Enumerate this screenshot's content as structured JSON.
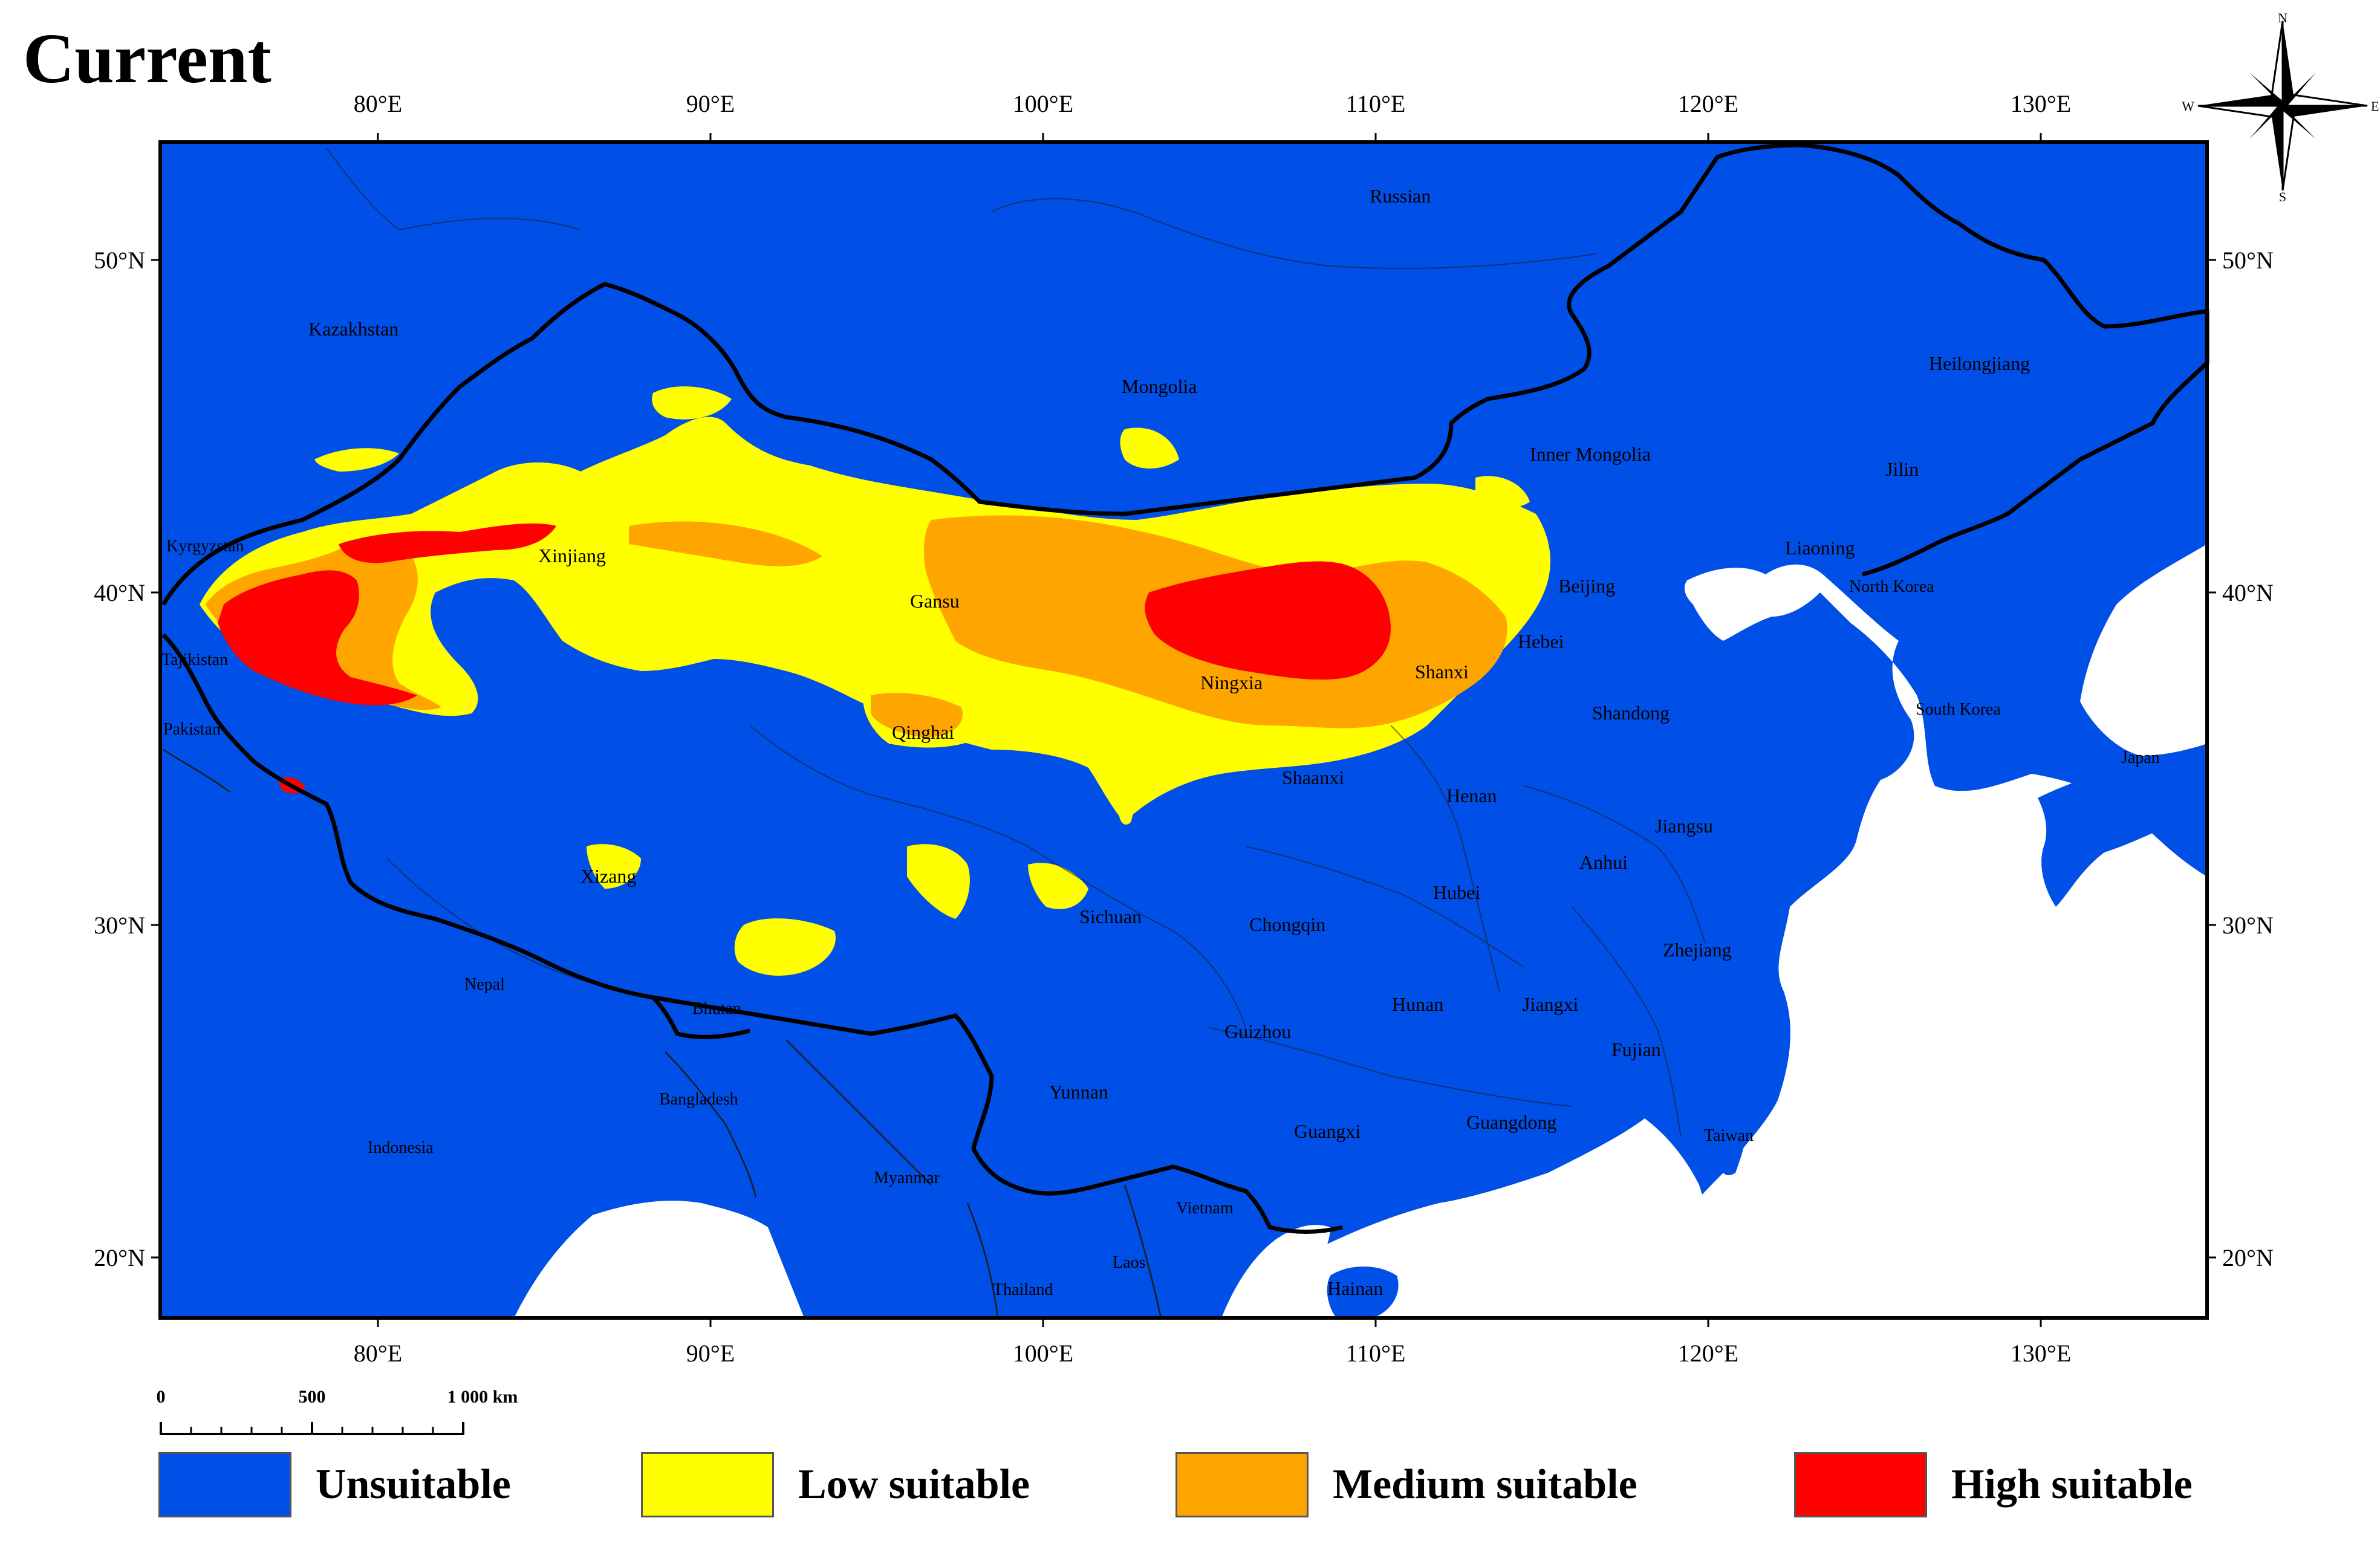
{
  "title": "Current",
  "longitude_ticks": [
    "80°E",
    "90°E",
    "100°E",
    "110°E",
    "120°E",
    "130°E"
  ],
  "latitude_ticks": [
    "50°N",
    "40°N",
    "30°N",
    "20°N"
  ],
  "compass": {
    "n": "N",
    "s": "S",
    "e": "E",
    "w": "W"
  },
  "scale_bar": {
    "tick0": "0",
    "tick1": "500",
    "tick2": "1 000 km"
  },
  "places": {
    "russian": "Russian",
    "kazakhstan": "Kazakhstan",
    "mongolia": "Mongolia",
    "heilongjiang": "Heilongjiang",
    "inner_mongolia": "Inner Mongolia",
    "jilin": "Jilin",
    "kyrgyzstan": "Kyrgyzstan",
    "xinjiang": "Xinjiang",
    "liaoning": "Liaoning",
    "beijing": "Beijing",
    "north_korea": "North Korea",
    "gansu": "Gansu",
    "tajikistan": "Tajikistan",
    "hebei": "Hebei",
    "shanxi": "Shanxi",
    "ningxia": "Ningxia",
    "south_korea": "South Korea",
    "pakistan": "Pakistan",
    "qinghai": "Qinghai",
    "shandong": "Shandong",
    "japan": "Japan",
    "shaanxi": "Shaanxi",
    "henan": "Henan",
    "jiangsu": "Jiangsu",
    "xizang": "Xizang",
    "anhui": "Anhui",
    "hubei": "Hubei",
    "sichuan": "Sichuan",
    "chongqin": "Chongqin",
    "zhejiang": "Zhejiang",
    "nepal": "Nepal",
    "bhutan": "Bhutan",
    "hunan": "Hunan",
    "jiangxi": "Jiangxi",
    "guizhou": "Guizhou",
    "fujian": "Fujian",
    "bangladesh": "Bangladesh",
    "yunnan": "Yunnan",
    "guangdong": "Guangdong",
    "guangxi": "Guangxi",
    "indonesia": "Indonesia",
    "taiwan": "Taiwan",
    "myanmar": "Myanmar",
    "vietnam": "Vietnam",
    "laos": "Laos",
    "thailand": "Thailand",
    "hainan": "Hainan"
  },
  "legend": [
    {
      "label": "Unsuitable",
      "color": "#0050e8"
    },
    {
      "label": "Low suitable",
      "color": "#ffff00"
    },
    {
      "label": "Medium suitable",
      "color": "#ffa500"
    },
    {
      "label": "High suitable",
      "color": "#ff0000"
    }
  ],
  "colors": {
    "water": "#ffffff",
    "land": "#0050e8",
    "low": "#ffff00",
    "medium": "#ffa500",
    "high": "#ff0000",
    "border": "#000000"
  }
}
